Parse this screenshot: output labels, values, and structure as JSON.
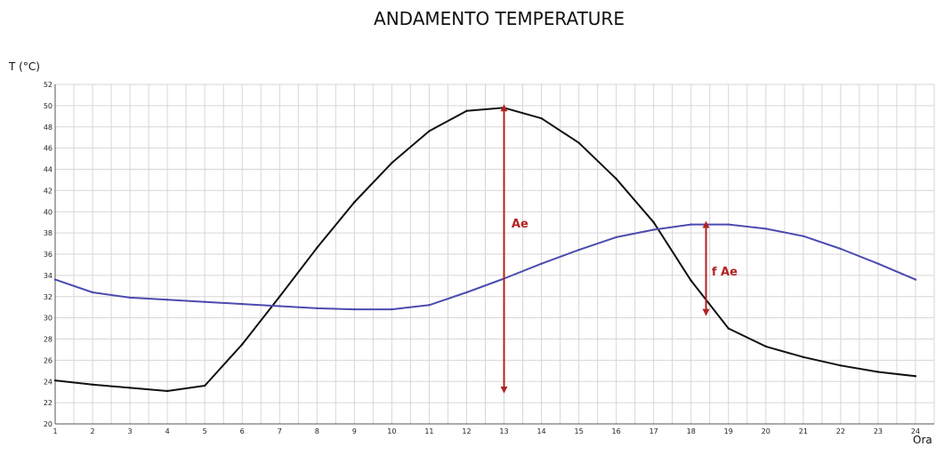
{
  "chart_data": {
    "type": "line",
    "title": "ANDAMENTO TEMPERATURE",
    "ylabel": "T (°C)",
    "xlabel": "Ora",
    "xlim": [
      1,
      24.5
    ],
    "ylim": [
      20,
      52
    ],
    "x_ticks": [
      1,
      2,
      3,
      4,
      5,
      6,
      7,
      8,
      9,
      10,
      11,
      12,
      13,
      14,
      15,
      16,
      17,
      18,
      19,
      20,
      21,
      22,
      23,
      24
    ],
    "y_ticks": [
      20,
      22,
      24,
      26,
      28,
      30,
      32,
      34,
      36,
      38,
      40,
      42,
      44,
      46,
      48,
      50,
      52
    ],
    "grid": true,
    "series": [
      {
        "color": "#111111",
        "x": [
          1,
          2,
          3,
          4,
          5,
          6,
          7,
          8,
          9,
          10,
          11,
          12,
          13,
          14,
          15,
          16,
          17,
          18,
          19,
          20,
          21,
          22,
          23,
          24
        ],
        "values": [
          24.1,
          23.7,
          23.4,
          23.1,
          23.6,
          27.5,
          32.0,
          36.6,
          40.9,
          44.6,
          47.6,
          49.5,
          49.8,
          48.8,
          46.5,
          43.1,
          39.0,
          33.5,
          29.0,
          27.3,
          26.3,
          25.5,
          24.9,
          24.5
        ]
      },
      {
        "color": "#4b4bb0",
        "x": [
          1,
          2,
          3,
          4,
          5,
          6,
          7,
          8,
          9,
          10,
          11,
          12,
          13,
          14,
          15,
          16,
          17,
          18,
          19,
          20,
          21,
          22,
          23,
          24
        ],
        "values": [
          33.6,
          32.4,
          31.9,
          31.7,
          31.5,
          31.3,
          31.1,
          30.9,
          30.8,
          30.8,
          31.2,
          32.4,
          33.7,
          35.1,
          36.4,
          37.6,
          38.3,
          38.8,
          38.8,
          38.4,
          37.7,
          36.5,
          35.1,
          33.6
        ]
      }
    ],
    "annotations": [
      {
        "label": "Ae",
        "x": 13,
        "y_from": 49.8,
        "y_to": 23.2,
        "label_x": 13.2,
        "label_y": 38.5,
        "color": "#b22222"
      },
      {
        "label": "f Ae",
        "x": 18.4,
        "y_from": 38.8,
        "y_to": 30.5,
        "label_x": 18.55,
        "label_y": 34.0,
        "color": "#b22222"
      }
    ]
  }
}
